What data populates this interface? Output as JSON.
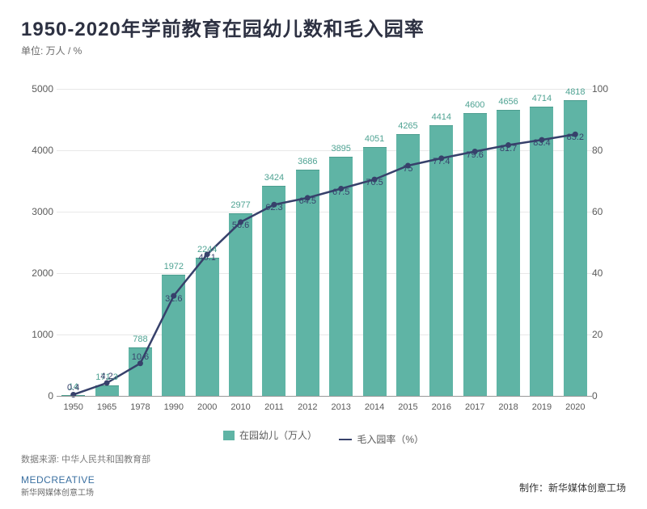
{
  "title": "1950-2020年学前教育在园幼儿数和毛入园率",
  "unit": "单位: 万人 / %",
  "chart": {
    "type": "bar+line",
    "categories": [
      "1950",
      "1965",
      "1978",
      "1990",
      "2000",
      "2010",
      "2011",
      "2012",
      "2013",
      "2014",
      "2015",
      "2016",
      "2017",
      "2018",
      "2019",
      "2020"
    ],
    "bar_values": [
      14,
      171.3,
      788,
      1972,
      2244,
      2977,
      3424,
      3686,
      3895,
      4051,
      4265,
      4414,
      4600,
      4656,
      4714,
      4818
    ],
    "line_values": [
      0.4,
      4.2,
      10.6,
      32.6,
      46.1,
      56.6,
      62.3,
      64.5,
      67.5,
      70.5,
      75,
      77.4,
      79.6,
      81.7,
      83.4,
      85.2
    ],
    "bar_color": "#5fb4a5",
    "line_color": "#37416b",
    "y_left": {
      "min": 0,
      "max": 5000,
      "step": 1000
    },
    "y_right": {
      "min": 0,
      "max": 100,
      "step": 20
    },
    "bar_label_color": "#4fa393",
    "line_label_color": "#37416b",
    "bar_label_fontsize": 11,
    "line_width": 2.5,
    "marker_radius": 3.5,
    "background_color": "#ffffff",
    "grid_color": "#e8e8e8",
    "bar_width_ratio": 0.7
  },
  "legend": {
    "bar": "在园幼儿（万人）",
    "line": "毛入园率（%）"
  },
  "source": "数据来源: 中华人民共和国教育部",
  "logo": {
    "mark": "MEDCREATIVE",
    "sub": "新华网媒体创意工场"
  },
  "producer": "制作：新华媒体创意工场"
}
